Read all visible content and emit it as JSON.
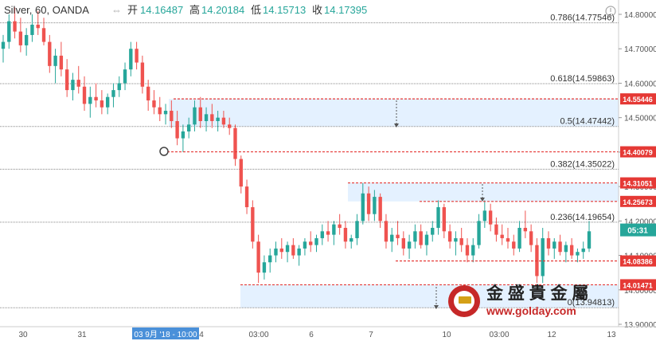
{
  "header": {
    "symbol": "Silver, 60, OANDA",
    "open_label": "开",
    "open_value": "14.16487",
    "high_label": "高",
    "high_value": "14.20184",
    "low_label": "低",
    "low_value": "14.15713",
    "close_label": "收",
    "close_value": "14.17395",
    "menu_icon": "chevron-collapse-icon"
  },
  "colors": {
    "up": "#26a69a",
    "down": "#ef5350",
    "level_line": "#e53935",
    "level_badge": "#e53935",
    "zone_fill": "#ddeeff",
    "fib_line": "#888888",
    "price_badge": "#26a69a",
    "date_badge": "#4a90d9"
  },
  "price_badge": {
    "value": "14.17395",
    "time": "05:31"
  },
  "watermark": {
    "brand": "金 盛 貴 金 屬",
    "site": "www.golday.com",
    "icon": "goldbar-logo-icon"
  },
  "chart_data": {
    "type": "candlestick",
    "symbol": "Silver",
    "timeframe": "60",
    "source": "OANDA",
    "ylim": [
      13.9,
      14.85
    ],
    "y_ticks": [
      "14.80000",
      "14.70000",
      "14.60000",
      "14.50000",
      "14.40000",
      "14.30000",
      "14.20000",
      "14.10000",
      "14.00000",
      "13.90000"
    ],
    "x_ticks": [
      "30",
      "31",
      "03 9月 '18 - 10:00",
      "4",
      "03:00",
      "6",
      "7",
      "10",
      "03:00",
      "12",
      "13"
    ],
    "fibonacci": [
      {
        "ratio": "0.786",
        "value": 14.77546,
        "label": "0.786(14.77546)"
      },
      {
        "ratio": "0.618",
        "value": 14.59863,
        "label": "0.618(14.59863)"
      },
      {
        "ratio": "0.5",
        "value": 14.47442,
        "label": "0.5(14.47442)"
      },
      {
        "ratio": "0.382",
        "value": 14.35022,
        "label": "0.382(14.35022)"
      },
      {
        "ratio": "0.236",
        "value": 14.19654,
        "label": "0.236(14.19654)"
      },
      {
        "ratio": "0",
        "value": 13.94813,
        "label": "0(13.94813)"
      }
    ],
    "levels": [
      14.55446,
      14.40079,
      14.31051,
      14.25673,
      14.08386,
      14.01471
    ],
    "level_labels": [
      "14.55446",
      "14.40079",
      "14.31051",
      "14.25673",
      "14.08386",
      "14.01471"
    ],
    "zones": [
      {
        "from": 14.47442,
        "to": 14.55446
      },
      {
        "from": 14.25673,
        "to": 14.31051
      },
      {
        "from": 13.94813,
        "to": 14.01471
      }
    ],
    "candles_ohlc": [
      [
        14.7,
        14.74,
        14.66,
        14.72
      ],
      [
        14.72,
        14.8,
        14.7,
        14.78
      ],
      [
        14.78,
        14.82,
        14.73,
        14.75
      ],
      [
        14.75,
        14.79,
        14.69,
        14.71
      ],
      [
        14.71,
        14.76,
        14.68,
        14.74
      ],
      [
        14.74,
        14.8,
        14.72,
        14.77
      ],
      [
        14.77,
        14.81,
        14.74,
        14.76
      ],
      [
        14.76,
        14.79,
        14.71,
        14.72
      ],
      [
        14.72,
        14.74,
        14.63,
        14.65
      ],
      [
        14.65,
        14.7,
        14.6,
        14.68
      ],
      [
        14.68,
        14.72,
        14.62,
        14.64
      ],
      [
        14.64,
        14.67,
        14.56,
        14.58
      ],
      [
        14.58,
        14.63,
        14.55,
        14.61
      ],
      [
        14.61,
        14.65,
        14.57,
        14.59
      ],
      [
        14.59,
        14.62,
        14.52,
        14.54
      ],
      [
        14.54,
        14.59,
        14.5,
        14.56
      ],
      [
        14.56,
        14.6,
        14.53,
        14.55
      ],
      [
        14.55,
        14.58,
        14.51,
        14.53
      ],
      [
        14.53,
        14.57,
        14.51,
        14.56
      ],
      [
        14.56,
        14.6,
        14.53,
        14.58
      ],
      [
        14.58,
        14.62,
        14.56,
        14.6
      ],
      [
        14.6,
        14.66,
        14.58,
        14.64
      ],
      [
        14.64,
        14.72,
        14.62,
        14.7
      ],
      [
        14.7,
        14.72,
        14.64,
        14.66
      ],
      [
        14.66,
        14.68,
        14.57,
        14.59
      ],
      [
        14.59,
        14.61,
        14.52,
        14.55
      ],
      [
        14.55,
        14.58,
        14.51,
        14.53
      ],
      [
        14.53,
        14.56,
        14.49,
        14.51
      ],
      [
        14.51,
        14.54,
        14.48,
        14.52
      ],
      [
        14.52,
        14.55,
        14.47,
        14.49
      ],
      [
        14.49,
        14.52,
        14.42,
        14.44
      ],
      [
        14.44,
        14.48,
        14.4,
        14.46
      ],
      [
        14.46,
        14.5,
        14.44,
        14.48
      ],
      [
        14.48,
        14.55,
        14.46,
        14.53
      ],
      [
        14.53,
        14.56,
        14.47,
        14.49
      ],
      [
        14.49,
        14.53,
        14.46,
        14.51
      ],
      [
        14.51,
        14.54,
        14.47,
        14.49
      ],
      [
        14.49,
        14.52,
        14.46,
        14.5
      ],
      [
        14.5,
        14.52,
        14.47,
        14.48
      ],
      [
        14.48,
        14.5,
        14.45,
        14.47
      ],
      [
        14.47,
        14.48,
        14.36,
        14.38
      ],
      [
        14.38,
        14.39,
        14.28,
        14.3
      ],
      [
        14.3,
        14.32,
        14.22,
        14.24
      ],
      [
        14.24,
        14.26,
        14.12,
        14.14
      ],
      [
        14.14,
        14.16,
        14.02,
        14.05
      ],
      [
        14.05,
        14.1,
        14.03,
        14.08
      ],
      [
        14.08,
        14.12,
        14.05,
        14.1
      ],
      [
        14.1,
        14.14,
        14.08,
        14.12
      ],
      [
        14.12,
        14.15,
        14.09,
        14.11
      ],
      [
        14.11,
        14.14,
        14.08,
        14.13
      ],
      [
        14.13,
        14.15,
        14.09,
        14.1
      ],
      [
        14.1,
        14.13,
        14.07,
        14.12
      ],
      [
        14.12,
        14.15,
        14.1,
        14.14
      ],
      [
        14.14,
        14.17,
        14.11,
        14.13
      ],
      [
        14.13,
        14.16,
        14.11,
        14.15
      ],
      [
        14.15,
        14.19,
        14.13,
        14.17
      ],
      [
        14.17,
        14.2,
        14.14,
        14.16
      ],
      [
        14.16,
        14.2,
        14.13,
        14.19
      ],
      [
        14.19,
        14.22,
        14.16,
        14.18
      ],
      [
        14.18,
        14.2,
        14.12,
        14.14
      ],
      [
        14.14,
        14.16,
        14.12,
        14.15
      ],
      [
        14.15,
        14.22,
        14.13,
        14.2
      ],
      [
        14.2,
        14.31,
        14.19,
        14.28
      ],
      [
        14.28,
        14.3,
        14.2,
        14.22
      ],
      [
        14.22,
        14.29,
        14.2,
        14.27
      ],
      [
        14.27,
        14.28,
        14.18,
        14.2
      ],
      [
        14.2,
        14.22,
        14.12,
        14.14
      ],
      [
        14.14,
        14.18,
        14.11,
        14.16
      ],
      [
        14.16,
        14.2,
        14.13,
        14.15
      ],
      [
        14.15,
        14.17,
        14.1,
        14.12
      ],
      [
        14.12,
        14.16,
        14.09,
        14.14
      ],
      [
        14.14,
        14.19,
        14.12,
        14.17
      ],
      [
        14.17,
        14.19,
        14.12,
        14.13
      ],
      [
        14.13,
        14.17,
        14.1,
        14.16
      ],
      [
        14.16,
        14.2,
        14.14,
        14.18
      ],
      [
        14.18,
        14.26,
        14.16,
        14.24
      ],
      [
        14.24,
        14.25,
        14.15,
        14.17
      ],
      [
        14.17,
        14.19,
        14.12,
        14.14
      ],
      [
        14.14,
        14.17,
        14.1,
        14.15
      ],
      [
        14.15,
        14.18,
        14.11,
        14.13
      ],
      [
        14.13,
        14.15,
        14.08,
        14.1
      ],
      [
        14.1,
        14.15,
        14.08,
        14.13
      ],
      [
        14.13,
        14.22,
        14.12,
        14.2
      ],
      [
        14.2,
        14.26,
        14.18,
        14.23
      ],
      [
        14.23,
        14.25,
        14.17,
        14.19
      ],
      [
        14.19,
        14.21,
        14.14,
        14.16
      ],
      [
        14.16,
        14.19,
        14.13,
        14.15
      ],
      [
        14.15,
        14.18,
        14.12,
        14.14
      ],
      [
        14.14,
        14.16,
        14.1,
        14.12
      ],
      [
        14.12,
        14.2,
        14.11,
        14.18
      ],
      [
        14.18,
        14.23,
        14.15,
        14.17
      ],
      [
        14.17,
        14.19,
        14.11,
        14.13
      ],
      [
        14.13,
        14.15,
        14.02,
        14.04
      ],
      [
        14.04,
        14.18,
        14.02,
        14.15
      ],
      [
        14.15,
        14.17,
        14.1,
        14.12
      ],
      [
        14.12,
        14.15,
        14.09,
        14.14
      ],
      [
        14.14,
        14.16,
        14.1,
        14.11
      ],
      [
        14.11,
        14.14,
        14.08,
        14.13
      ],
      [
        14.13,
        14.15,
        14.09,
        14.1
      ],
      [
        14.1,
        14.12,
        14.08,
        14.11
      ],
      [
        14.11,
        14.14,
        14.09,
        14.12
      ],
      [
        14.12,
        14.2,
        14.11,
        14.17
      ]
    ]
  }
}
